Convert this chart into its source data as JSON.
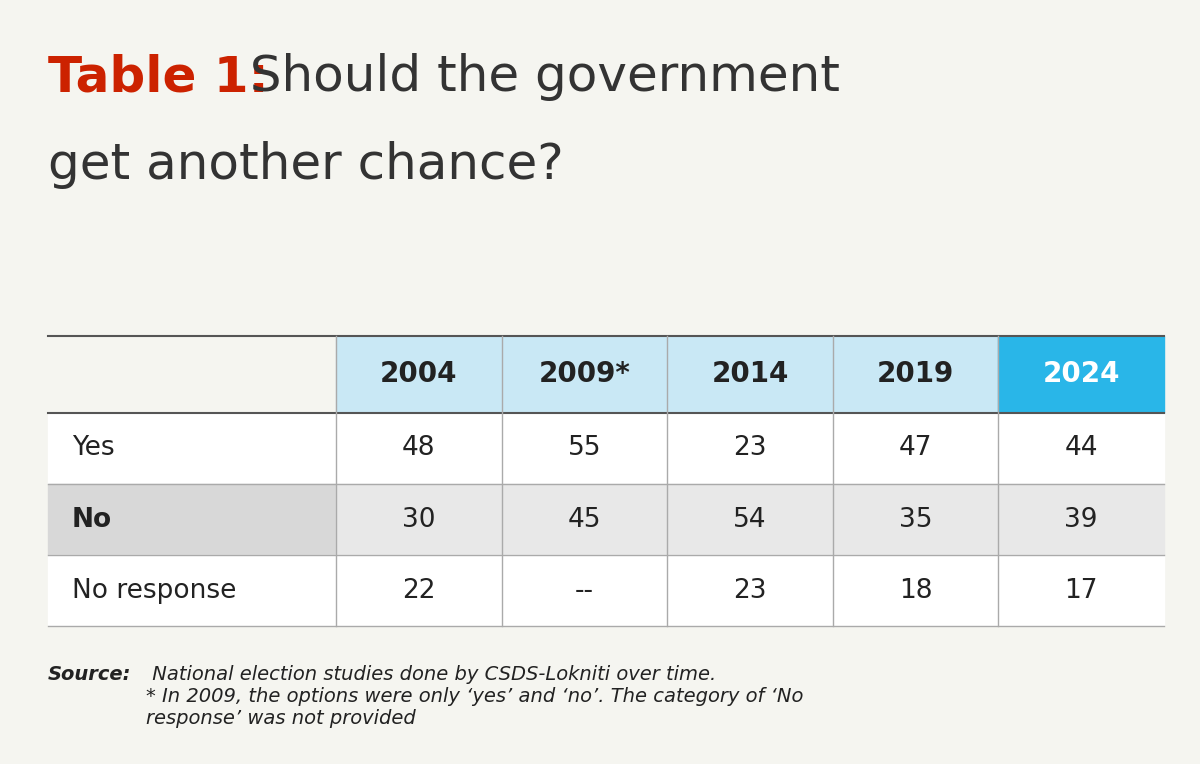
{
  "title_bold": "Table 1:",
  "title_normal": " Should the government\nget another chance?",
  "columns": [
    "2004",
    "2009*",
    "2014",
    "2019",
    "2024"
  ],
  "rows": [
    "Yes",
    "No",
    "No response"
  ],
  "values": [
    [
      "48",
      "55",
      "23",
      "47",
      "44"
    ],
    [
      "30",
      "45",
      "54",
      "35",
      "39"
    ],
    [
      "22",
      "--",
      "23",
      "18",
      "17"
    ]
  ],
  "header_bg_light": "#c9e8f5",
  "header_bg_highlight": "#29b6e8",
  "header_text_highlight": "#ffffff",
  "row_bg_odd": "#ffffff",
  "row_bg_even": "#e8e8e8",
  "row_label_bg_even": "#d8d8d8",
  "line_color": "#aaaaaa",
  "top_line_color": "#555555",
  "title_red": "#cc2200",
  "title_gray": "#333333",
  "source_text": "Source: National election studies done by CSDS-Lokniti over time.\n* In 2009, the options were only ‘yes’ and ‘no’. The category of ‘No\nresponse’ was not provided",
  "bg_color": "#f5f5f0"
}
